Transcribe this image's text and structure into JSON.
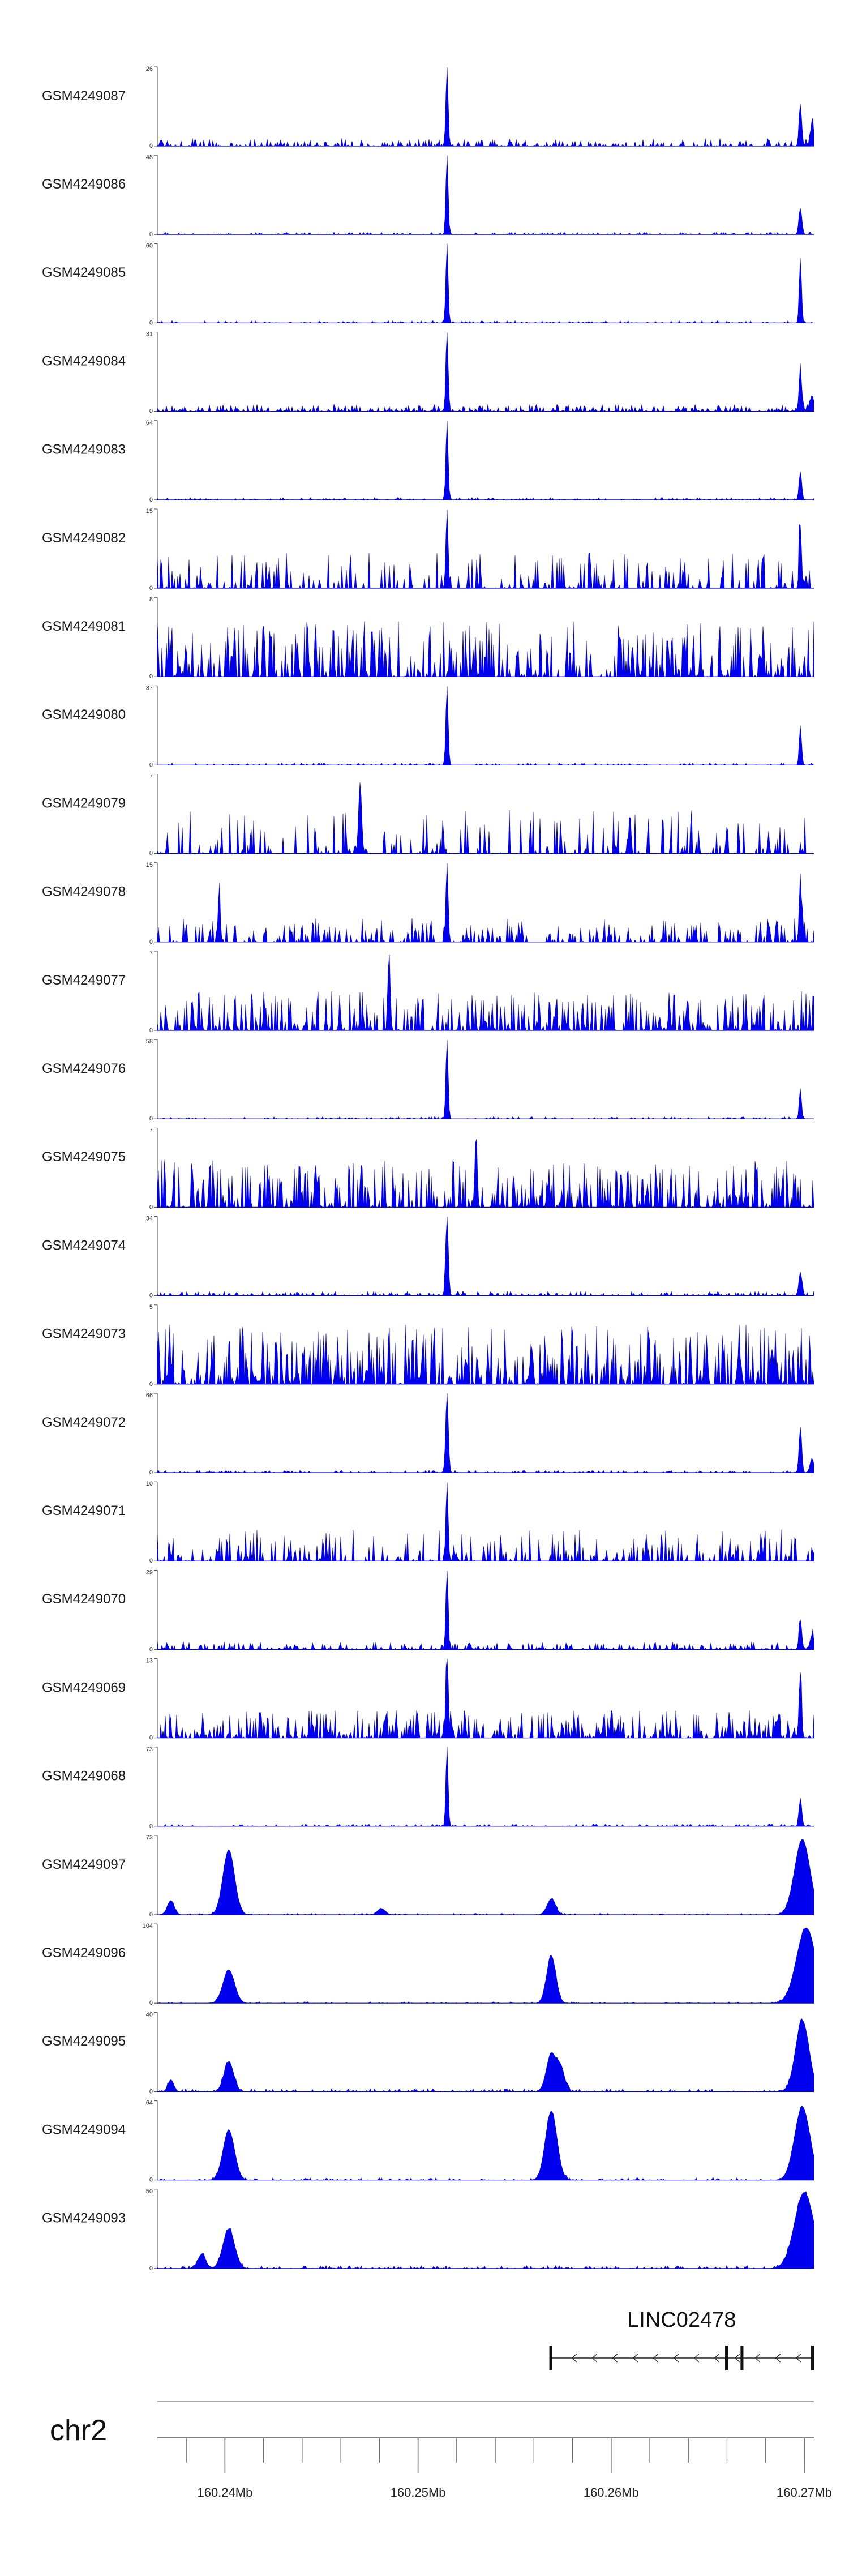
{
  "chart_data": {
    "type": "area",
    "x_range_mb": [
      160.2365,
      160.2705
    ],
    "track_color": "#0000EE",
    "tracks": [
      {
        "name": "GSM4249087",
        "ymax": 26,
        "profile": "peaks",
        "seed": 101,
        "noise": 0.1,
        "density": 0.55,
        "peaks": [
          {
            "x": 160.2515,
            "h": 1.0,
            "w": 6e-05
          },
          {
            "x": 160.2698,
            "h": 0.52,
            "w": 7e-05
          },
          {
            "x": 160.2704,
            "h": 0.3,
            "w": 8e-05
          }
        ]
      },
      {
        "name": "GSM4249086",
        "ymax": 48,
        "profile": "peaks",
        "seed": 102,
        "noise": 0.03,
        "density": 0.45,
        "peaks": [
          {
            "x": 160.2515,
            "h": 1.0,
            "w": 6e-05
          },
          {
            "x": 160.2698,
            "h": 0.33,
            "w": 8e-05
          }
        ]
      },
      {
        "name": "GSM4249085",
        "ymax": 60,
        "profile": "peaks",
        "seed": 103,
        "noise": 0.03,
        "density": 0.45,
        "peaks": [
          {
            "x": 160.2515,
            "h": 1.0,
            "w": 6e-05
          },
          {
            "x": 160.2698,
            "h": 0.82,
            "w": 6e-05
          }
        ]
      },
      {
        "name": "GSM4249084",
        "ymax": 31,
        "profile": "peaks",
        "seed": 104,
        "noise": 0.09,
        "density": 0.6,
        "peaks": [
          {
            "x": 160.2515,
            "h": 1.0,
            "w": 6e-05
          },
          {
            "x": 160.2698,
            "h": 0.52,
            "w": 7e-05
          },
          {
            "x": 160.2704,
            "h": 0.2,
            "w": 0.0001
          }
        ]
      },
      {
        "name": "GSM4249083",
        "ymax": 64,
        "profile": "peaks",
        "seed": 105,
        "noise": 0.03,
        "density": 0.45,
        "peaks": [
          {
            "x": 160.2515,
            "h": 1.0,
            "w": 6e-05
          },
          {
            "x": 160.2698,
            "h": 0.36,
            "w": 7e-05
          }
        ]
      },
      {
        "name": "GSM4249082",
        "ymax": 15,
        "profile": "sparse",
        "seed": 106,
        "noise": 0.45,
        "density": 0.35,
        "peaks": [
          {
            "x": 160.2515,
            "h": 1.0,
            "w": 6e-05
          },
          {
            "x": 160.2698,
            "h": 0.8,
            "w": 6e-05
          }
        ]
      },
      {
        "name": "GSM4249081",
        "ymax": 8,
        "profile": "sparse",
        "seed": 107,
        "noise": 0.7,
        "density": 0.55,
        "peaks": []
      },
      {
        "name": "GSM4249080",
        "ymax": 37,
        "profile": "peaks",
        "seed": 108,
        "noise": 0.03,
        "density": 0.4,
        "peaks": [
          {
            "x": 160.2515,
            "h": 1.0,
            "w": 6e-05
          },
          {
            "x": 160.2698,
            "h": 0.5,
            "w": 6e-05
          }
        ]
      },
      {
        "name": "GSM4249079",
        "ymax": 7,
        "profile": "sparse",
        "seed": 109,
        "noise": 0.55,
        "density": 0.3,
        "peaks": [
          {
            "x": 160.247,
            "h": 0.9,
            "w": 8e-05
          }
        ]
      },
      {
        "name": "GSM4249078",
        "ymax": 15,
        "profile": "sparse",
        "seed": 110,
        "noise": 0.3,
        "density": 0.4,
        "peaks": [
          {
            "x": 160.2515,
            "h": 1.0,
            "w": 6e-05
          },
          {
            "x": 160.2698,
            "h": 0.85,
            "w": 6e-05
          },
          {
            "x": 160.2397,
            "h": 0.6,
            "w": 6e-05
          }
        ]
      },
      {
        "name": "GSM4249077",
        "ymax": 7,
        "profile": "sparse",
        "seed": 111,
        "noise": 0.5,
        "density": 0.55,
        "peaks": [
          {
            "x": 160.2485,
            "h": 1.0,
            "w": 6e-05
          }
        ]
      },
      {
        "name": "GSM4249076",
        "ymax": 58,
        "profile": "peaks",
        "seed": 112,
        "noise": 0.03,
        "density": 0.45,
        "peaks": [
          {
            "x": 160.2515,
            "h": 1.0,
            "w": 6e-05
          },
          {
            "x": 160.2698,
            "h": 0.36,
            "w": 6e-05
          }
        ]
      },
      {
        "name": "GSM4249075",
        "ymax": 7,
        "profile": "sparse",
        "seed": 113,
        "noise": 0.6,
        "density": 0.55,
        "peaks": [
          {
            "x": 160.253,
            "h": 0.9,
            "w": 6e-05
          }
        ]
      },
      {
        "name": "GSM4249074",
        "ymax": 34,
        "profile": "peaks",
        "seed": 114,
        "noise": 0.06,
        "density": 0.55,
        "peaks": [
          {
            "x": 160.2515,
            "h": 1.0,
            "w": 7e-05
          },
          {
            "x": 160.2698,
            "h": 0.3,
            "w": 8e-05
          }
        ]
      },
      {
        "name": "GSM4249073",
        "ymax": 5,
        "profile": "sparse",
        "seed": 115,
        "noise": 0.75,
        "density": 0.65,
        "peaks": []
      },
      {
        "name": "GSM4249072",
        "ymax": 66,
        "profile": "peaks",
        "seed": 116,
        "noise": 0.03,
        "density": 0.45,
        "peaks": [
          {
            "x": 160.2515,
            "h": 1.0,
            "w": 7e-05
          },
          {
            "x": 160.2698,
            "h": 0.58,
            "w": 7e-05
          },
          {
            "x": 160.2704,
            "h": 0.18,
            "w": 0.0001
          }
        ]
      },
      {
        "name": "GSM4249071",
        "ymax": 10,
        "profile": "sparse",
        "seed": 117,
        "noise": 0.4,
        "density": 0.4,
        "peaks": [
          {
            "x": 160.2515,
            "h": 1.0,
            "w": 6e-05
          }
        ]
      },
      {
        "name": "GSM4249070",
        "ymax": 29,
        "profile": "peaks",
        "seed": 118,
        "noise": 0.1,
        "density": 0.6,
        "peaks": [
          {
            "x": 160.2515,
            "h": 1.0,
            "w": 6e-05
          },
          {
            "x": 160.2698,
            "h": 0.38,
            "w": 7e-05
          },
          {
            "x": 160.2704,
            "h": 0.18,
            "w": 0.0001
          }
        ]
      },
      {
        "name": "GSM4249069",
        "ymax": 13,
        "profile": "sparse",
        "seed": 119,
        "noise": 0.35,
        "density": 0.6,
        "peaks": [
          {
            "x": 160.2515,
            "h": 1.0,
            "w": 6e-05
          },
          {
            "x": 160.2698,
            "h": 0.75,
            "w": 6e-05
          }
        ]
      },
      {
        "name": "GSM4249068",
        "ymax": 73,
        "profile": "peaks",
        "seed": 120,
        "noise": 0.03,
        "density": 0.45,
        "peaks": [
          {
            "x": 160.2515,
            "h": 1.0,
            "w": 6e-05
          },
          {
            "x": 160.2698,
            "h": 0.36,
            "w": 7e-05
          }
        ]
      },
      {
        "name": "GSM4249097",
        "ymax": 73,
        "profile": "broad",
        "seed": 121,
        "noise": 0.02,
        "density": 0.35,
        "peaks": [
          {
            "x": 160.2402,
            "h": 0.82,
            "w": 0.0003
          },
          {
            "x": 160.2372,
            "h": 0.18,
            "w": 0.00018
          },
          {
            "x": 160.2569,
            "h": 0.2,
            "w": 0.00022
          },
          {
            "x": 160.2481,
            "h": 0.08,
            "w": 0.0002
          },
          {
            "x": 160.2699,
            "h": 0.95,
            "w": 0.0004
          }
        ]
      },
      {
        "name": "GSM4249096",
        "ymax": 104,
        "profile": "broad",
        "seed": 122,
        "noise": 0.02,
        "density": 0.35,
        "peaks": [
          {
            "x": 160.2402,
            "h": 0.42,
            "w": 0.0003
          },
          {
            "x": 160.2569,
            "h": 0.6,
            "w": 0.00024
          },
          {
            "x": 160.2701,
            "h": 0.95,
            "w": 0.0005
          }
        ]
      },
      {
        "name": "GSM4249095",
        "ymax": 40,
        "profile": "broad",
        "seed": 123,
        "noise": 0.04,
        "density": 0.4,
        "peaks": [
          {
            "x": 160.2372,
            "h": 0.15,
            "w": 0.00015
          },
          {
            "x": 160.2402,
            "h": 0.38,
            "w": 0.00025
          },
          {
            "x": 160.2569,
            "h": 0.48,
            "w": 0.00025
          },
          {
            "x": 160.2574,
            "h": 0.28,
            "w": 0.0002
          },
          {
            "x": 160.2699,
            "h": 0.9,
            "w": 0.00035
          }
        ]
      },
      {
        "name": "GSM4249094",
        "ymax": 64,
        "profile": "broad",
        "seed": 124,
        "noise": 0.03,
        "density": 0.4,
        "peaks": [
          {
            "x": 160.2402,
            "h": 0.63,
            "w": 0.0003
          },
          {
            "x": 160.2569,
            "h": 0.87,
            "w": 0.0003
          },
          {
            "x": 160.2699,
            "h": 0.92,
            "w": 0.0004
          }
        ]
      },
      {
        "name": "GSM4249093",
        "ymax": 50,
        "profile": "broad",
        "seed": 125,
        "noise": 0.04,
        "density": 0.45,
        "peaks": [
          {
            "x": 160.2402,
            "h": 0.5,
            "w": 0.0003
          },
          {
            "x": 160.2388,
            "h": 0.18,
            "w": 0.0002
          },
          {
            "x": 160.27,
            "h": 0.96,
            "w": 0.0005
          }
        ]
      }
    ],
    "gene": {
      "name": "LINC02478",
      "strand": "-",
      "start_mb": 160.2568,
      "end_mb": 160.2705,
      "exons_mb": [
        [
          160.2568,
          160.25695
        ],
        [
          160.2659,
          160.26605
        ],
        [
          160.2667,
          160.26685
        ],
        [
          160.27035,
          160.2705
        ]
      ]
    },
    "chromosome": "chr2",
    "x_ticks_mb": [
      160.24,
      160.25,
      160.26,
      160.27
    ],
    "x_tick_labels": [
      "160.24Mb",
      "160.25Mb",
      "160.26Mb",
      "160.27Mb"
    ],
    "x_minor_step_mb": 0.002
  }
}
